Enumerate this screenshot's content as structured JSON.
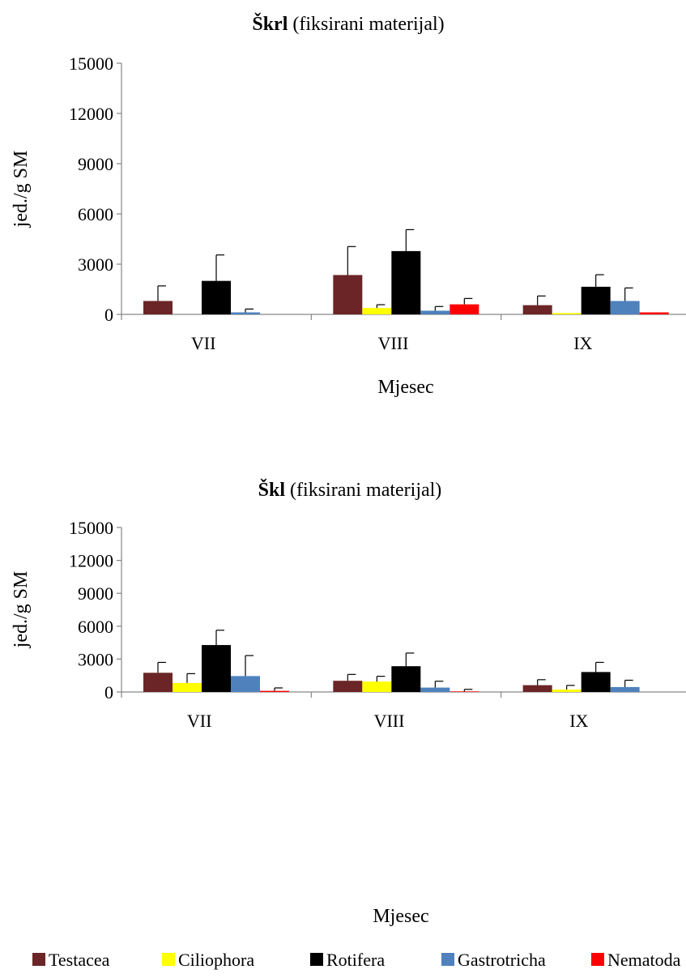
{
  "chart_data": [
    {
      "type": "bar",
      "title_bold": "Škrl",
      "title_rest": " (fiksirani materijal)",
      "xlabel": "Mjesec",
      "ylabel": "jed./g SM",
      "ylim": [
        0,
        15000
      ],
      "yticks": [
        0,
        3000,
        6000,
        9000,
        12000,
        15000
      ],
      "categories": [
        "VII",
        "VIII",
        "IX"
      ],
      "series": [
        {
          "name": "Testacea",
          "values": [
            800,
            2350,
            550
          ],
          "errors": [
            900,
            1700,
            550
          ]
        },
        {
          "name": "Ciliophora",
          "values": [
            0,
            380,
            80
          ],
          "errors": [
            0,
            200,
            0
          ]
        },
        {
          "name": "Rotifera",
          "values": [
            2000,
            3780,
            1650
          ],
          "errors": [
            1550,
            1280,
            720
          ]
        },
        {
          "name": "Gastrotricha",
          "values": [
            120,
            220,
            800
          ],
          "errors": [
            200,
            250,
            780
          ]
        },
        {
          "name": "Nematoda",
          "values": [
            0,
            600,
            120
          ],
          "errors": [
            0,
            350,
            0
          ]
        }
      ]
    },
    {
      "type": "bar",
      "title_bold": "Škl",
      "title_rest": " (fiksirani materijal)",
      "xlabel": "Mjesec",
      "ylabel": "jed./g SM",
      "ylim": [
        0,
        15000
      ],
      "yticks": [
        0,
        3000,
        6000,
        9000,
        12000,
        15000
      ],
      "categories": [
        "VII",
        "VIII",
        "IX"
      ],
      "series": [
        {
          "name": "Testacea",
          "values": [
            1750,
            1020,
            620
          ],
          "errors": [
            950,
            580,
            500
          ]
        },
        {
          "name": "Ciliophora",
          "values": [
            820,
            950,
            220
          ],
          "errors": [
            850,
            480,
            380
          ]
        },
        {
          "name": "Rotifera",
          "values": [
            4280,
            2350,
            1820
          ],
          "errors": [
            1350,
            1200,
            880
          ]
        },
        {
          "name": "Gastrotricha",
          "values": [
            1450,
            400,
            450
          ],
          "errors": [
            1870,
            580,
            620
          ]
        },
        {
          "name": "Nematoda",
          "values": [
            100,
            50,
            0
          ],
          "errors": [
            270,
            190,
            0
          ]
        }
      ]
    }
  ],
  "legend": [
    {
      "name": "Testacea",
      "color": "#6b2526"
    },
    {
      "name": "Ciliophora",
      "color": "#ffff00"
    },
    {
      "name": "Rotifera",
      "color": "#000000"
    },
    {
      "name": "Gastrotricha",
      "color": "#4f81bd"
    },
    {
      "name": "Nematoda",
      "color": "#ff0000"
    }
  ]
}
